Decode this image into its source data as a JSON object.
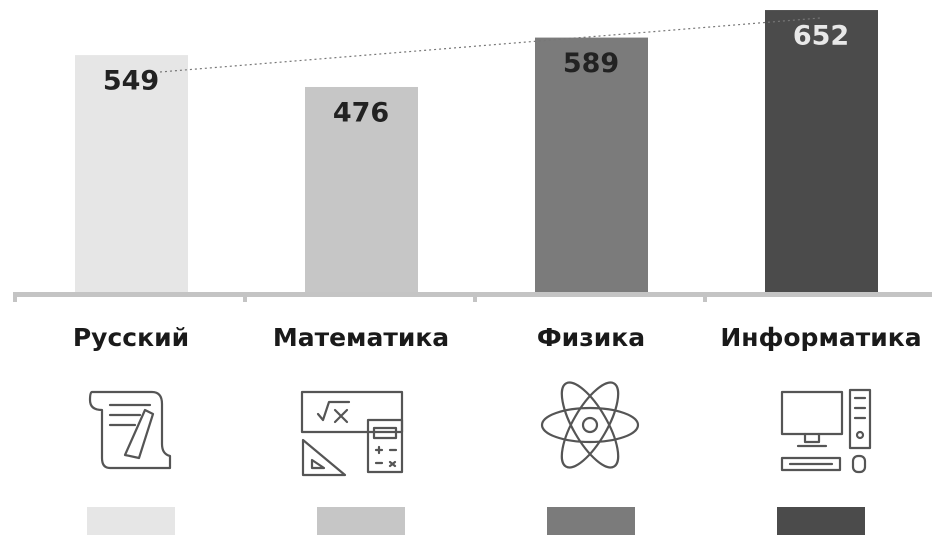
{
  "chart_data": {
    "type": "bar",
    "categories": [
      "Русский",
      "Математика",
      "Физика",
      "Информатика"
    ],
    "values": [
      549,
      476,
      589,
      652
    ],
    "colors": [
      "#e6e6e6",
      "#c6c6c6",
      "#7b7b7b",
      "#4b4b4b"
    ],
    "ylim": [
      0,
      675
    ]
  }
}
